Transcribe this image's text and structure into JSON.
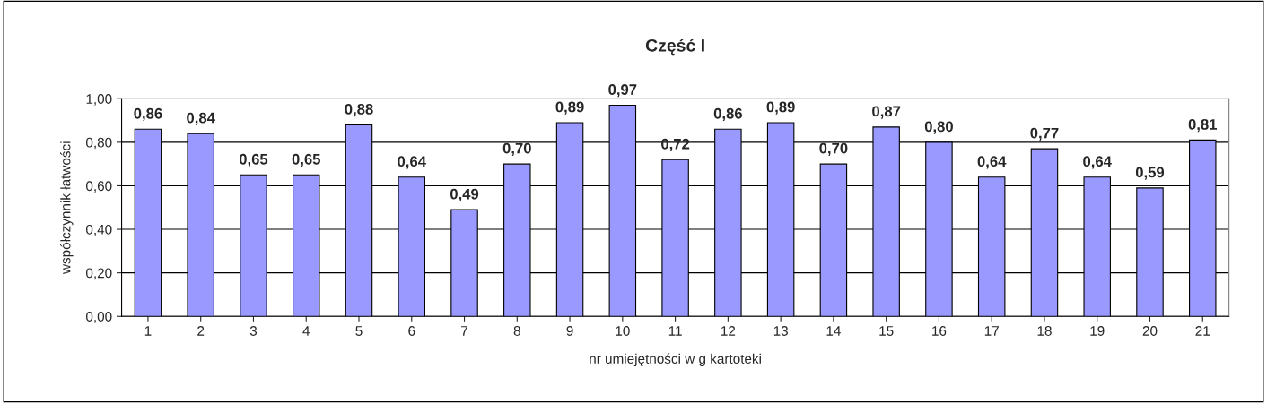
{
  "chart_data": {
    "type": "bar",
    "title": "Część I",
    "xlabel": "nr umiejętności w g kartoteki",
    "ylabel": "współczynnik łatwości",
    "categories": [
      "1",
      "2",
      "3",
      "4",
      "5",
      "6",
      "7",
      "8",
      "9",
      "10",
      "11",
      "12",
      "13",
      "14",
      "15",
      "16",
      "17",
      "18",
      "19",
      "20",
      "21"
    ],
    "values": [
      0.86,
      0.84,
      0.65,
      0.65,
      0.88,
      0.64,
      0.49,
      0.7,
      0.89,
      0.97,
      0.72,
      0.86,
      0.89,
      0.7,
      0.87,
      0.8,
      0.64,
      0.77,
      0.64,
      0.59,
      0.81
    ],
    "value_labels": [
      "0,86",
      "0,84",
      "0,65",
      "0,65",
      "0,88",
      "0,64",
      "0,49",
      "0,70",
      "0,89",
      "0,97",
      "0,72",
      "0,86",
      "0,89",
      "0,70",
      "0,87",
      "0,80",
      "0,64",
      "0,77",
      "0,64",
      "0,59",
      "0,81"
    ],
    "color": "#9999ff",
    "ylim": [
      0,
      1
    ],
    "yticks": [
      {
        "value": 0,
        "label": "0,00"
      },
      {
        "value": 0.2,
        "label": "0,20"
      },
      {
        "value": 0.4,
        "label": "0,40"
      },
      {
        "value": 0.6,
        "label": "0,60"
      },
      {
        "value": 0.8,
        "label": "0,80"
      },
      {
        "value": 1,
        "label": "1,00"
      }
    ],
    "grid": "y",
    "legend": false
  }
}
